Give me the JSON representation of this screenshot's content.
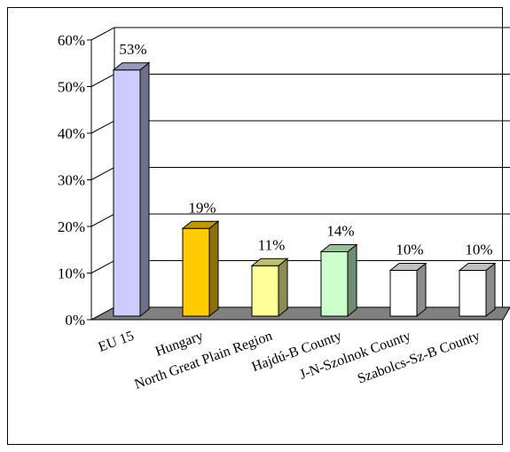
{
  "chart_data": {
    "type": "bar",
    "style": "3d-column",
    "categories": [
      "EU 15",
      "Hungary",
      "North Great Plain Region",
      "Hajdú-B County",
      "J-N-Szolnok County",
      "Szabolcs-Sz-B County"
    ],
    "values": [
      53,
      19,
      11,
      14,
      10,
      10
    ],
    "data_labels": [
      "53%",
      "19%",
      "11%",
      "14%",
      "10%",
      "10%"
    ],
    "colors": [
      "#ccccff",
      "#ffcc00",
      "#ffff99",
      "#ccffcc",
      "#ffffff",
      "#ffffff"
    ],
    "ylim": [
      0,
      60
    ],
    "yticks": [
      0,
      10,
      20,
      30,
      40,
      50,
      60
    ],
    "ytick_labels": [
      "0%",
      "10%",
      "20%",
      "30%",
      "40%",
      "50%",
      "60%"
    ],
    "grid": true,
    "floor_color": "#808080",
    "title": "",
    "xlabel": "",
    "ylabel": ""
  }
}
